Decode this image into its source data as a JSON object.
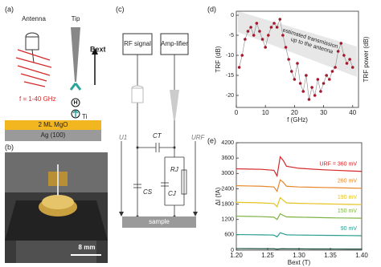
{
  "panels": {
    "a": {
      "letter": "(a)",
      "antenna": "Antenna",
      "tip": "Tip",
      "field": "Bext",
      "freq": "f = 1-40 GHz",
      "atom": "H",
      "ti": "Ti",
      "layer1": "2 ML MgO",
      "layer2": "Ag (100)"
    },
    "b": {
      "letter": "(b)",
      "scale": "8 mm"
    },
    "c": {
      "letter": "(c)",
      "rf": "RF signal",
      "amp": "Amp-lifier",
      "u1": "U1",
      "urf": "URF",
      "ct": "CT",
      "cs": "CS",
      "rj": "RJ",
      "cj": "CJ",
      "sample": "sample"
    },
    "d": {
      "letter": "(d)"
    },
    "e": {
      "letter": "(e)"
    }
  },
  "chart_data": [
    {
      "type": "line",
      "markers": true,
      "color": "#a3182b",
      "x_label": "f (GHz)",
      "y_label": "TRF (dB)",
      "y2_label": "TRF power (dB)",
      "annotations": [
        "estimated transmission",
        "up to the antenna"
      ],
      "x": [
        1,
        2,
        3,
        4,
        5,
        6,
        7,
        8,
        9,
        10,
        11,
        12,
        13,
        14,
        15,
        16,
        17,
        18,
        19,
        20,
        21,
        22,
        23,
        24,
        25,
        26,
        27,
        28,
        29,
        30,
        31,
        32,
        33,
        34,
        35,
        36,
        37,
        38,
        39,
        40
      ],
      "values": [
        -13,
        -10,
        -6,
        -4,
        -3,
        -5,
        -2,
        -4,
        -6,
        -8,
        -5,
        -3,
        -2,
        -3,
        -1,
        -5,
        -8,
        -11,
        -14,
        -16,
        -12,
        -17,
        -19,
        -15,
        -21,
        -18,
        -20,
        -16,
        -19,
        -17,
        -15,
        -16,
        -14,
        -13,
        -9,
        -7,
        -10,
        -12,
        -11,
        -13
      ],
      "xlim": [
        0,
        42
      ],
      "xticks": [
        0,
        10,
        20,
        30,
        40
      ],
      "ylim": [
        -23,
        1
      ],
      "yticks": [
        0,
        -5,
        -10,
        -15,
        -20
      ]
    },
    {
      "type": "line",
      "markers": false,
      "x_label": "Bext (T)",
      "y_label": "ΔI (fA)",
      "x": [
        1.2,
        1.22,
        1.24,
        1.26,
        1.265,
        1.27,
        1.275,
        1.28,
        1.3,
        1.32,
        1.34,
        1.36,
        1.38,
        1.4
      ],
      "series": [
        {
          "name": "URF = 360 mV",
          "color": "#d62728",
          "values": [
            3180,
            3170,
            3160,
            3120,
            2900,
            3650,
            3500,
            3280,
            3200,
            3170,
            3140,
            3120,
            3100,
            3080
          ]
        },
        {
          "name": "260 mV",
          "color": "#e8862a",
          "values": [
            2520,
            2510,
            2500,
            2470,
            2300,
            2750,
            2650,
            2500,
            2470,
            2460,
            2450,
            2440,
            2430,
            2420
          ]
        },
        {
          "name": "190 mV",
          "color": "#e6c21f",
          "values": [
            1870,
            1860,
            1850,
            1820,
            1700,
            2050,
            1950,
            1850,
            1830,
            1820,
            1810,
            1800,
            1790,
            1780
          ]
        },
        {
          "name": "150 mV",
          "color": "#7cb342",
          "values": [
            1330,
            1320,
            1310,
            1290,
            1200,
            1420,
            1360,
            1300,
            1290,
            1280,
            1270,
            1260,
            1255,
            1250
          ]
        },
        {
          "name": "90 mV",
          "color": "#2a9d8f",
          "values": [
            610,
            605,
            600,
            590,
            520,
            680,
            640,
            600,
            590,
            585,
            580,
            575,
            570,
            565
          ]
        },
        {
          "color": "#1b4d3e",
          "values": [
            60,
            58,
            56,
            55,
            40,
            50,
            55,
            52,
            50,
            48,
            46,
            45,
            44,
            42
          ]
        }
      ],
      "xlim": [
        1.2,
        1.4
      ],
      "xticks": [
        {
          "value": 1.2,
          "label": "1.20"
        },
        {
          "value": 1.25,
          "label": "1.25"
        },
        {
          "value": 1.3,
          "label": "1.30"
        },
        {
          "value": 1.35,
          "label": "1.35"
        },
        {
          "value": 1.4,
          "label": "1.40"
        }
      ],
      "ylim": [
        0,
        4200
      ],
      "yticks": [
        0,
        600,
        1200,
        1800,
        2400,
        3000,
        3600,
        4200
      ]
    }
  ]
}
